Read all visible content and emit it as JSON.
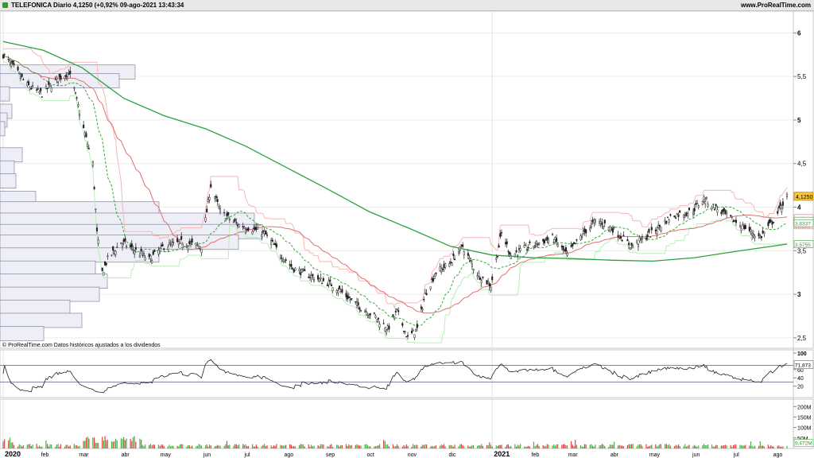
{
  "header": {
    "title": "TELEFONICA Diario 4,1250 (+0,92% 09-ago-2021 13:43:34",
    "site": "www.ProRealTime.com"
  },
  "chart_data": [
    {
      "type": "candlestick",
      "note": "© ProRealTime.com Datos históricos ajustados a los dividendos",
      "y_ticks": [
        "2,5",
        "3",
        "3,5",
        "4",
        "4,5",
        "5",
        "5,5",
        "6"
      ],
      "ylim": [
        2.38,
        6.25
      ],
      "x_ticks": [
        "2020",
        "feb",
        "mar",
        "abr",
        "may",
        "jun",
        "jul",
        "ago",
        "sep",
        "oct",
        "nov",
        "dic",
        "2021",
        "feb",
        "mar",
        "abr",
        "may",
        "jun",
        "jul",
        "ago"
      ],
      "x_bold": [
        "2020",
        "2021"
      ],
      "last_price_label": "4,1250",
      "value_labels": [
        {
          "text": "3,8735",
          "value": 3.8735,
          "color": "#e06a6a"
        },
        {
          "text": "3,8285",
          "value": 3.8285,
          "color": "#e06a6a"
        },
        {
          "text": "3,8437",
          "value": 3.8437,
          "color": "#3a9a3a"
        },
        {
          "text": "3,8337",
          "value": 3.8337,
          "color": "#3a9a3a"
        },
        {
          "text": "3,5755",
          "value": 3.5755,
          "color": "#3a9a3a"
        }
      ],
      "price_path": [
        [
          "2020-01-02",
          5.75
        ],
        [
          "2020-01-10",
          5.6
        ],
        [
          "2020-01-20",
          5.4
        ],
        [
          "2020-01-31",
          5.3
        ],
        [
          "2020-02-10",
          5.45
        ],
        [
          "2020-02-20",
          5.55
        ],
        [
          "2020-02-24",
          5.35
        ],
        [
          "2020-03-02",
          4.9
        ],
        [
          "2020-03-09",
          4.5
        ],
        [
          "2020-03-12",
          3.7
        ],
        [
          "2020-03-16",
          3.25
        ],
        [
          "2020-03-20",
          3.4
        ],
        [
          "2020-03-30",
          3.6
        ],
        [
          "2020-04-10",
          3.5
        ],
        [
          "2020-04-20",
          3.4
        ],
        [
          "2020-05-01",
          3.55
        ],
        [
          "2020-05-15",
          3.6
        ],
        [
          "2020-05-29",
          3.55
        ],
        [
          "2020-06-05",
          4.25
        ],
        [
          "2020-06-12",
          3.95
        ],
        [
          "2020-06-25",
          3.8
        ],
        [
          "2020-07-06",
          3.75
        ],
        [
          "2020-07-15",
          3.7
        ],
        [
          "2020-07-25",
          3.5
        ],
        [
          "2020-08-05",
          3.3
        ],
        [
          "2020-08-20",
          3.2
        ],
        [
          "2020-09-05",
          3.1
        ],
        [
          "2020-09-20",
          2.9
        ],
        [
          "2020-10-05",
          2.75
        ],
        [
          "2020-10-15",
          2.6
        ],
        [
          "2020-10-22",
          2.8
        ],
        [
          "2020-10-30",
          2.5
        ],
        [
          "2020-11-06",
          2.6
        ],
        [
          "2020-11-12",
          3.0
        ],
        [
          "2020-11-20",
          3.25
        ],
        [
          "2020-11-30",
          3.35
        ],
        [
          "2020-12-10",
          3.55
        ],
        [
          "2020-12-20",
          3.25
        ],
        [
          "2020-12-31",
          3.1
        ],
        [
          "2021-01-08",
          3.7
        ],
        [
          "2021-01-15",
          3.45
        ],
        [
          "2021-01-29",
          3.55
        ],
        [
          "2021-02-15",
          3.65
        ],
        [
          "2021-02-26",
          3.45
        ],
        [
          "2021-03-10",
          3.7
        ],
        [
          "2021-03-20",
          3.85
        ],
        [
          "2021-04-01",
          3.75
        ],
        [
          "2021-04-15",
          3.55
        ],
        [
          "2021-04-30",
          3.7
        ],
        [
          "2021-05-15",
          3.9
        ],
        [
          "2021-05-30",
          3.95
        ],
        [
          "2021-06-08",
          4.1
        ],
        [
          "2021-06-20",
          3.95
        ],
        [
          "2021-06-30",
          3.85
        ],
        [
          "2021-07-10",
          3.75
        ],
        [
          "2021-07-20",
          3.65
        ],
        [
          "2021-07-30",
          3.85
        ],
        [
          "2021-08-09",
          4.125
        ]
      ],
      "ma200": [
        [
          "2020-01-02",
          5.9
        ],
        [
          "2020-02-01",
          5.8
        ],
        [
          "2020-03-01",
          5.6
        ],
        [
          "2020-04-01",
          5.25
        ],
        [
          "2020-05-01",
          5.05
        ],
        [
          "2020-06-01",
          4.9
        ],
        [
          "2020-07-01",
          4.7
        ],
        [
          "2020-08-01",
          4.45
        ],
        [
          "2020-09-01",
          4.2
        ],
        [
          "2020-10-01",
          3.95
        ],
        [
          "2020-11-01",
          3.75
        ],
        [
          "2020-12-01",
          3.55
        ],
        [
          "2021-01-01",
          3.45
        ],
        [
          "2021-02-01",
          3.42
        ],
        [
          "2021-03-01",
          3.41
        ],
        [
          "2021-04-01",
          3.39
        ],
        [
          "2021-05-01",
          3.38
        ],
        [
          "2021-06-01",
          3.42
        ],
        [
          "2021-07-01",
          3.49
        ],
        [
          "2021-08-09",
          3.5755
        ]
      ]
    },
    {
      "type": "line",
      "name": "RSI",
      "y_ticks": [
        "20",
        "40",
        "60",
        "100"
      ],
      "ylim": [
        0,
        100
      ],
      "last_label": "71,873",
      "bands": [
        30,
        70
      ]
    },
    {
      "type": "bar",
      "name": "Volumen",
      "y_ticks": [
        "50M",
        "100M",
        "150M",
        "200M"
      ],
      "last_label": "9,472M"
    }
  ]
}
